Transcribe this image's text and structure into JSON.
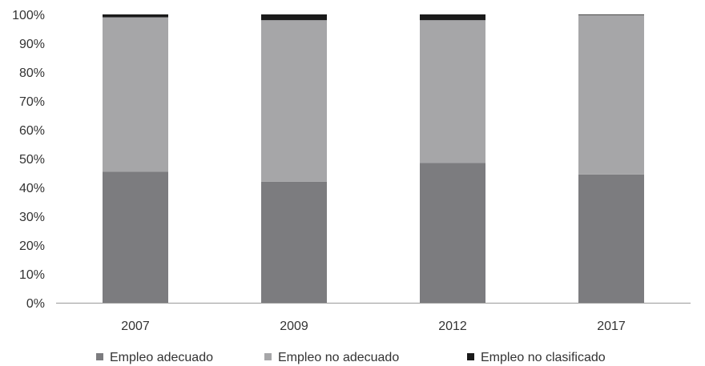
{
  "chart_data": {
    "type": "bar",
    "stacked": true,
    "categories": [
      "2007",
      "2009",
      "2012",
      "2017"
    ],
    "series": [
      {
        "name": "Empleo adecuado",
        "color": "#7c7c7f",
        "values": [
          45.5,
          42.0,
          48.5,
          44.5
        ]
      },
      {
        "name": "Empleo no adecuado",
        "color": "#a6a6a8",
        "values": [
          53.5,
          56.0,
          49.5,
          55.3
        ]
      },
      {
        "name": "Empleo no clasificado",
        "color": "#1a1a1a",
        "values": [
          1.0,
          2.0,
          2.0,
          0.2
        ]
      }
    ],
    "y_ticks": [
      "0%",
      "10%",
      "20%",
      "30%",
      "40%",
      "50%",
      "60%",
      "70%",
      "80%",
      "90%",
      "100%"
    ],
    "ylim": [
      0,
      100
    ],
    "grid": false,
    "legend_position": "bottom"
  }
}
